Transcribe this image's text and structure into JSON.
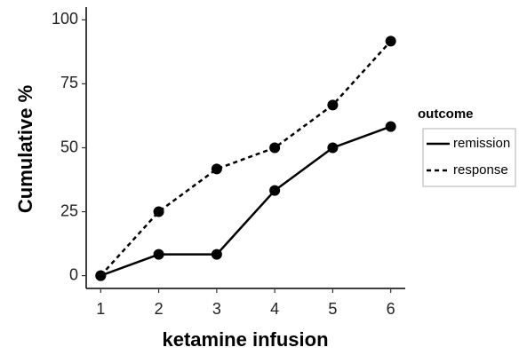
{
  "chart_data": {
    "type": "line",
    "x": [
      1,
      2,
      3,
      4,
      5,
      6
    ],
    "series": [
      {
        "name": "remission",
        "color": "#000000",
        "linestyle": "solid",
        "values": [
          0,
          8.3,
          8.3,
          33.3,
          50,
          58.3
        ]
      },
      {
        "name": "response",
        "color": "#000000",
        "linestyle": "dashed",
        "values": [
          0,
          25,
          41.7,
          50,
          66.7,
          91.7
        ]
      }
    ],
    "x_label": "ketamine infusion",
    "y_label": "Cumulative %",
    "legend_title": "outcome",
    "legend": "right",
    "xlim": [
      0.75,
      6.25
    ],
    "xticks": [
      1,
      2,
      3,
      4,
      5,
      6
    ],
    "ylim": [
      -5,
      105
    ],
    "yticks": [
      0,
      25,
      50,
      75,
      100
    ],
    "grid": false
  }
}
